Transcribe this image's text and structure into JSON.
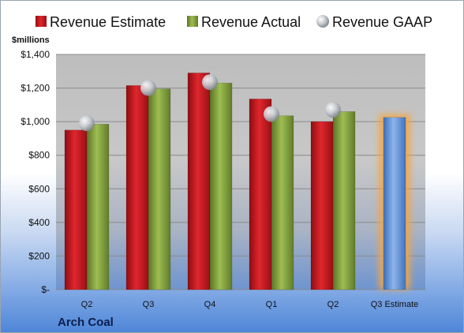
{
  "chart_data": {
    "type": "bar",
    "title": "",
    "ylabel": "$millions",
    "company": "Arch Coal",
    "categories": [
      "Q2",
      "Q3",
      "Q4",
      "Q1",
      "Q2",
      "Q3 Estimate"
    ],
    "series": [
      {
        "name": "Revenue Estimate",
        "color": "#c8161d",
        "values": [
          950,
          1215,
          1290,
          1135,
          1000,
          null
        ]
      },
      {
        "name": "Revenue Actual",
        "color": "#7f9f3a",
        "values": [
          985,
          1195,
          1230,
          1035,
          1060,
          null
        ]
      },
      {
        "name": "Revenue GAAP",
        "color": "#b7bcc4",
        "values": [
          990,
          1200,
          1235,
          1045,
          1070,
          null
        ]
      }
    ],
    "estimate": {
      "category": "Q3 Estimate",
      "value": 1025,
      "color": "#5b8fd6",
      "glow": "#f5a542"
    },
    "ylim": [
      0,
      1400
    ],
    "yticks": [
      0,
      200,
      400,
      600,
      800,
      1000,
      1200,
      1400
    ],
    "ytick_labels": [
      "$-",
      "$200",
      "$400",
      "$600",
      "$800",
      "$1,000",
      "$1,200",
      "$1,400"
    ],
    "grid": true,
    "legend_position": "top"
  }
}
